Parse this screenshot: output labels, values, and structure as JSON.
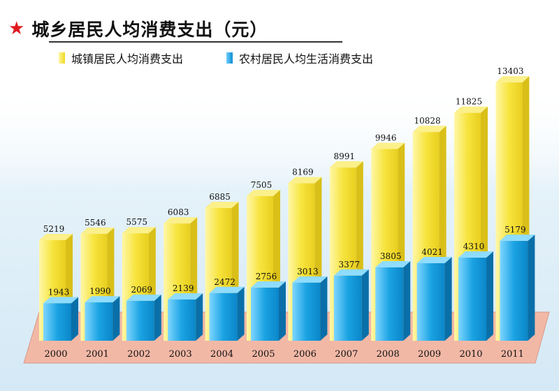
{
  "title": "城乡居民人均消费支出（元）",
  "title_icon": "star-icon",
  "colors": {
    "star": "#e0191e",
    "urban": "#f5e23c",
    "rural": "#1aa0e0",
    "base": "#f2b8a6"
  },
  "chart_data": {
    "type": "bar",
    "categories": [
      "2000",
      "2001",
      "2002",
      "2003",
      "2004",
      "2005",
      "2006",
      "2007",
      "2008",
      "2009",
      "2010",
      "2011"
    ],
    "series": [
      {
        "name": "城镇居民人均消费支出",
        "values": [
          5219,
          5546,
          5575,
          6083,
          6885,
          7505,
          8169,
          8991,
          9946,
          10828,
          11825,
          13403
        ]
      },
      {
        "name": "农村居民人均生活消费支出",
        "values": [
          1943,
          1990,
          2069,
          2139,
          2472,
          2756,
          3013,
          3377,
          3805,
          4021,
          4310,
          5179
        ]
      }
    ],
    "grid": false,
    "legend_position": "top"
  }
}
